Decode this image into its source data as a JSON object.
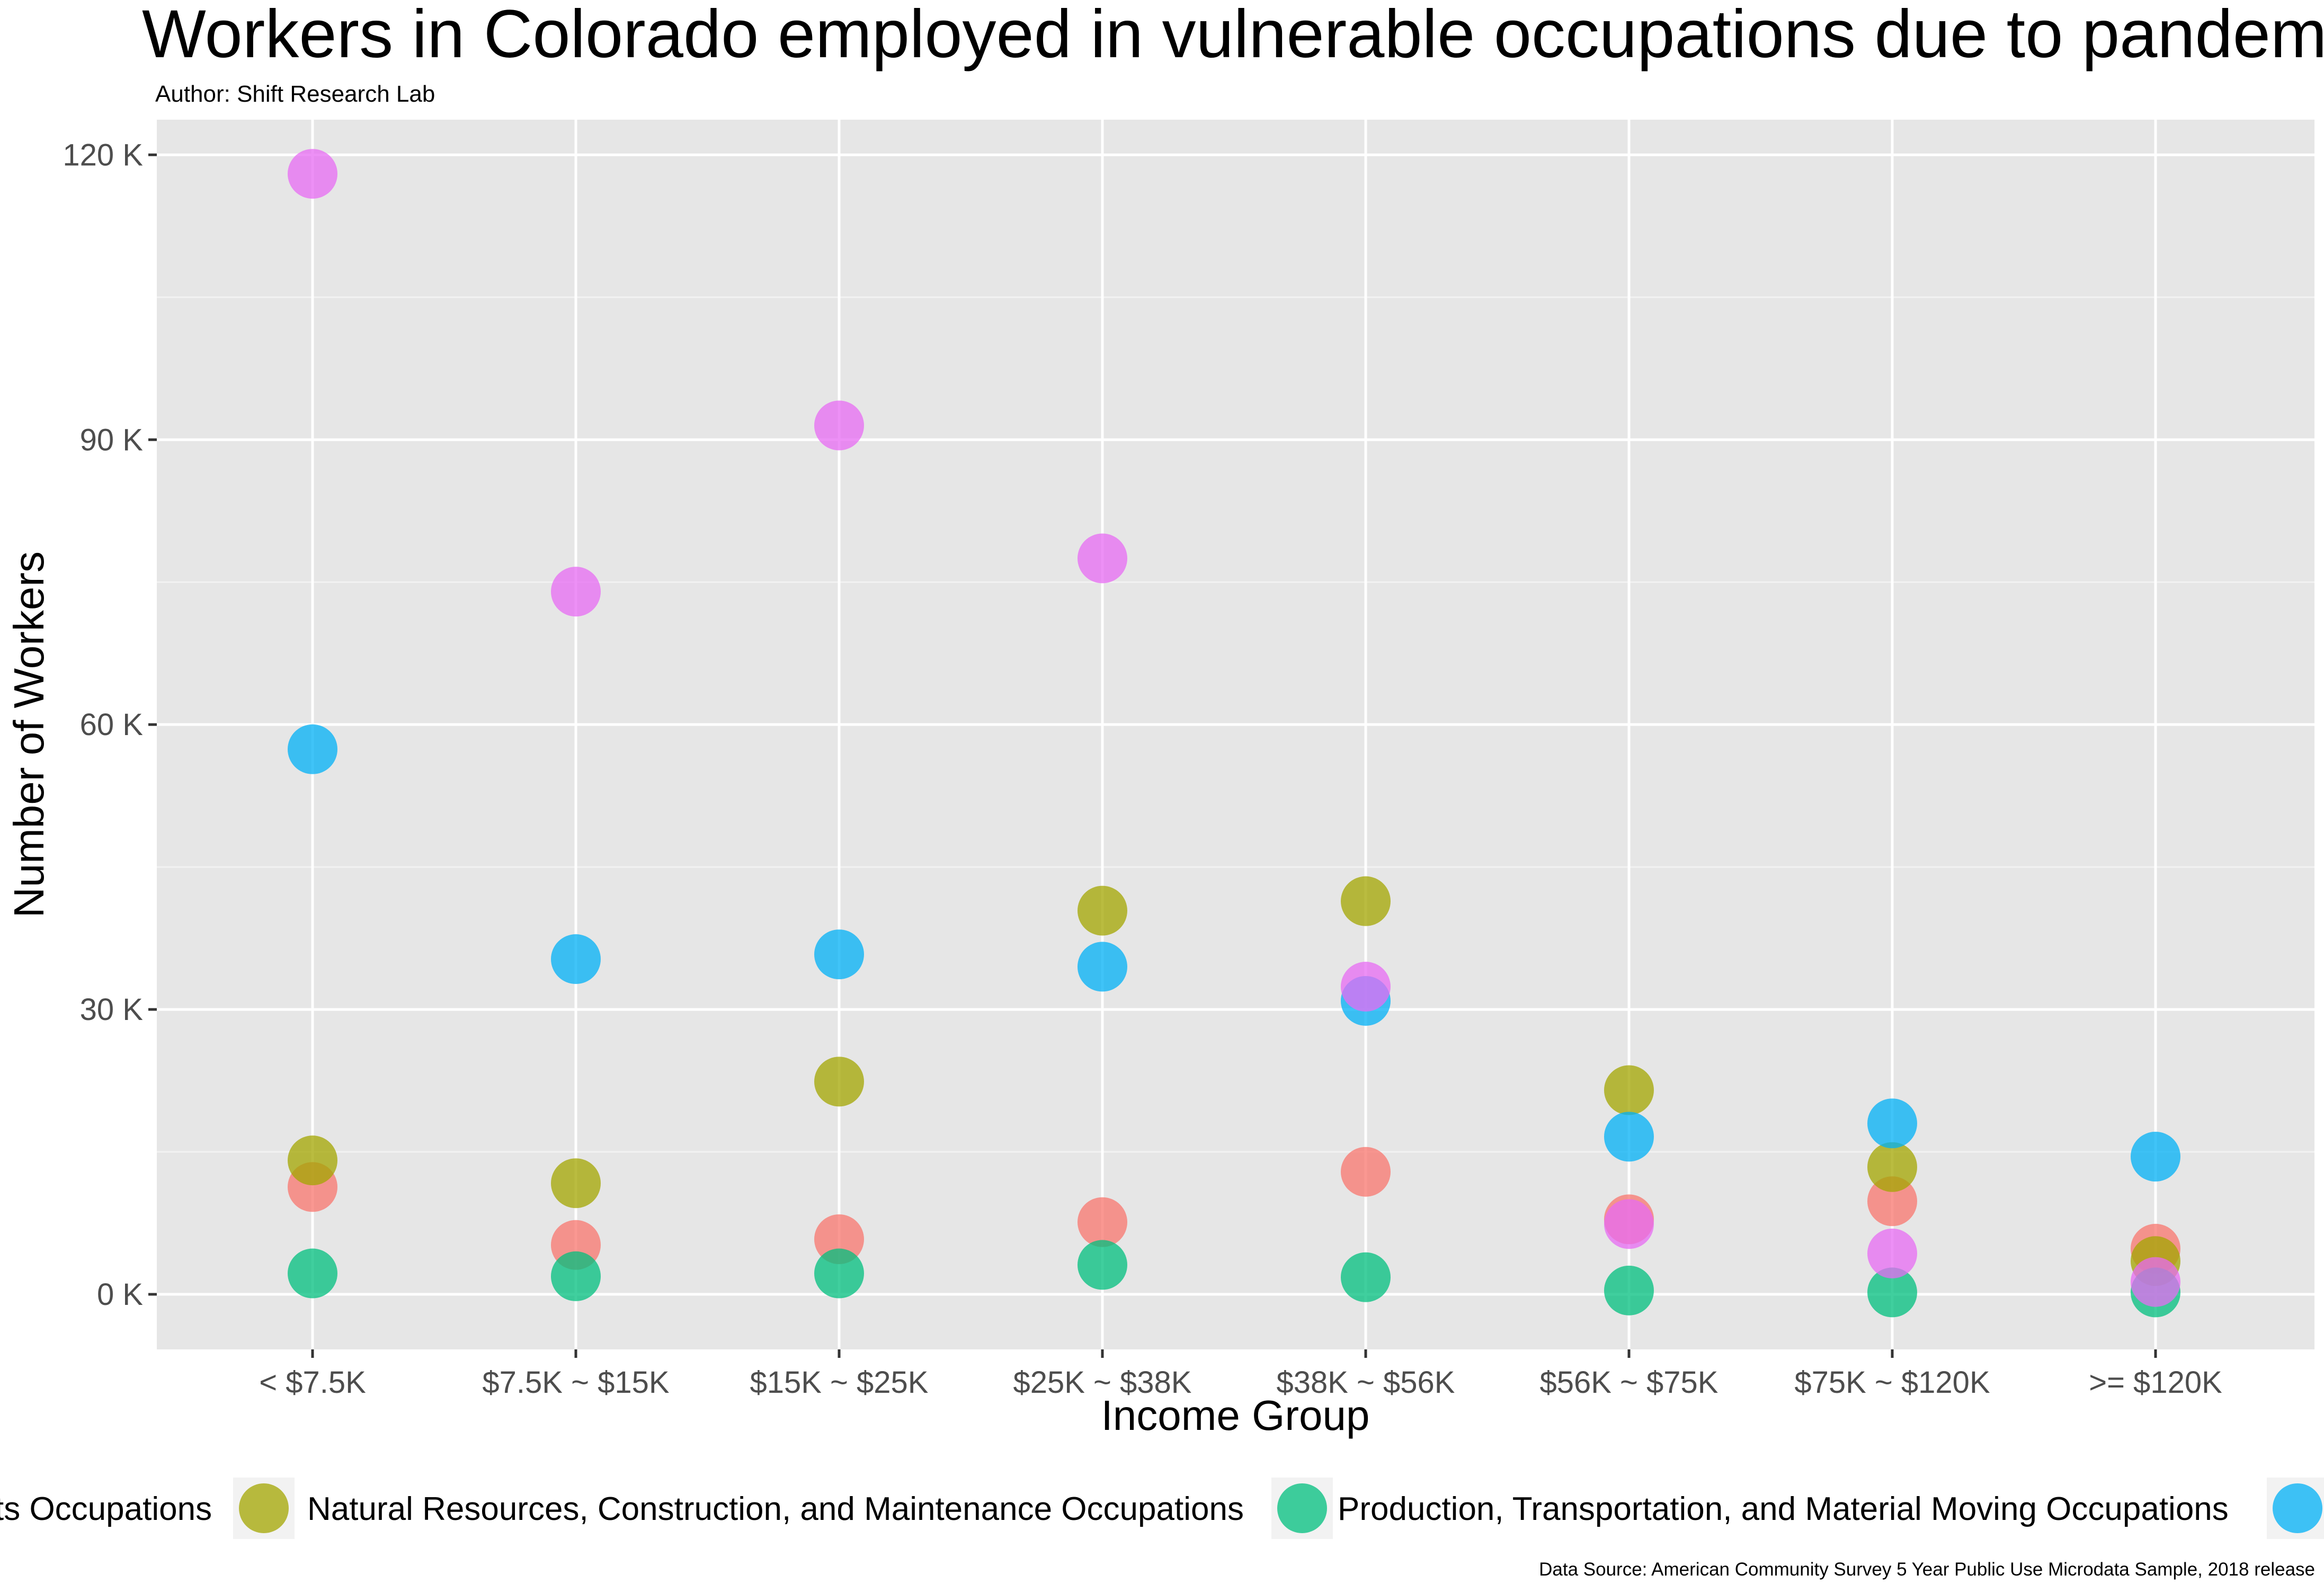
{
  "chart_data": {
    "type": "scatter",
    "title": "Workers in Colorado employed in vulnerable occupations due to pandemic",
    "subtitle": "Author: Shift Research Lab",
    "caption": "Data Source: American Community Survey 5 Year Public Use Microdata Sample, 2018 release",
    "xlabel": "Income Group",
    "ylabel": "Number of Workers",
    "categories": [
      "< $7.5K",
      "$7.5K ~ $15K",
      "$15K ~ $25K",
      "$25K ~ $38K",
      "$38K ~ $56K",
      "$56K ~ $75K",
      "$75K ~ $120K",
      ">= $120K"
    ],
    "y_ticks": [
      0,
      30000,
      60000,
      90000,
      120000
    ],
    "y_tick_labels": [
      "0 K",
      "30 K",
      "60 K",
      "90 K",
      "120 K"
    ],
    "ylim": [
      -5800,
      123700
    ],
    "grid": true,
    "legend_position": "bottom",
    "series": [
      {
        "name": "",
        "legend_label": "ts Occupations",
        "color": "#F8766D",
        "values": [
          11300,
          5200,
          5800,
          7600,
          12900,
          7900,
          9800,
          4800
        ]
      },
      {
        "name": "Natural Resources, Construction, and Maintenance Occupations",
        "legend_label": "Natural Resources, Construction, and Maintenance Occupations",
        "color": "#A3A500",
        "values": [
          14100,
          11700,
          22400,
          40400,
          41400,
          21500,
          13400,
          3500
        ]
      },
      {
        "name": "Production, Transportation, and Material Moving Occupations",
        "legend_label": "Production, Transportation, and Material Moving Occupations",
        "color": "#00BF7D",
        "values": [
          2200,
          1900,
          2200,
          3100,
          1800,
          400,
          200,
          200
        ]
      },
      {
        "name": "",
        "legend_label": "",
        "color": "#00B0F6",
        "values": [
          57400,
          35300,
          35800,
          34500,
          30900,
          16600,
          18000,
          14500
        ]
      },
      {
        "name": "",
        "legend_label": "",
        "color": "#E76BF3",
        "values": [
          118000,
          74000,
          91500,
          77500,
          32400,
          7400,
          4300,
          1300
        ]
      }
    ]
  }
}
